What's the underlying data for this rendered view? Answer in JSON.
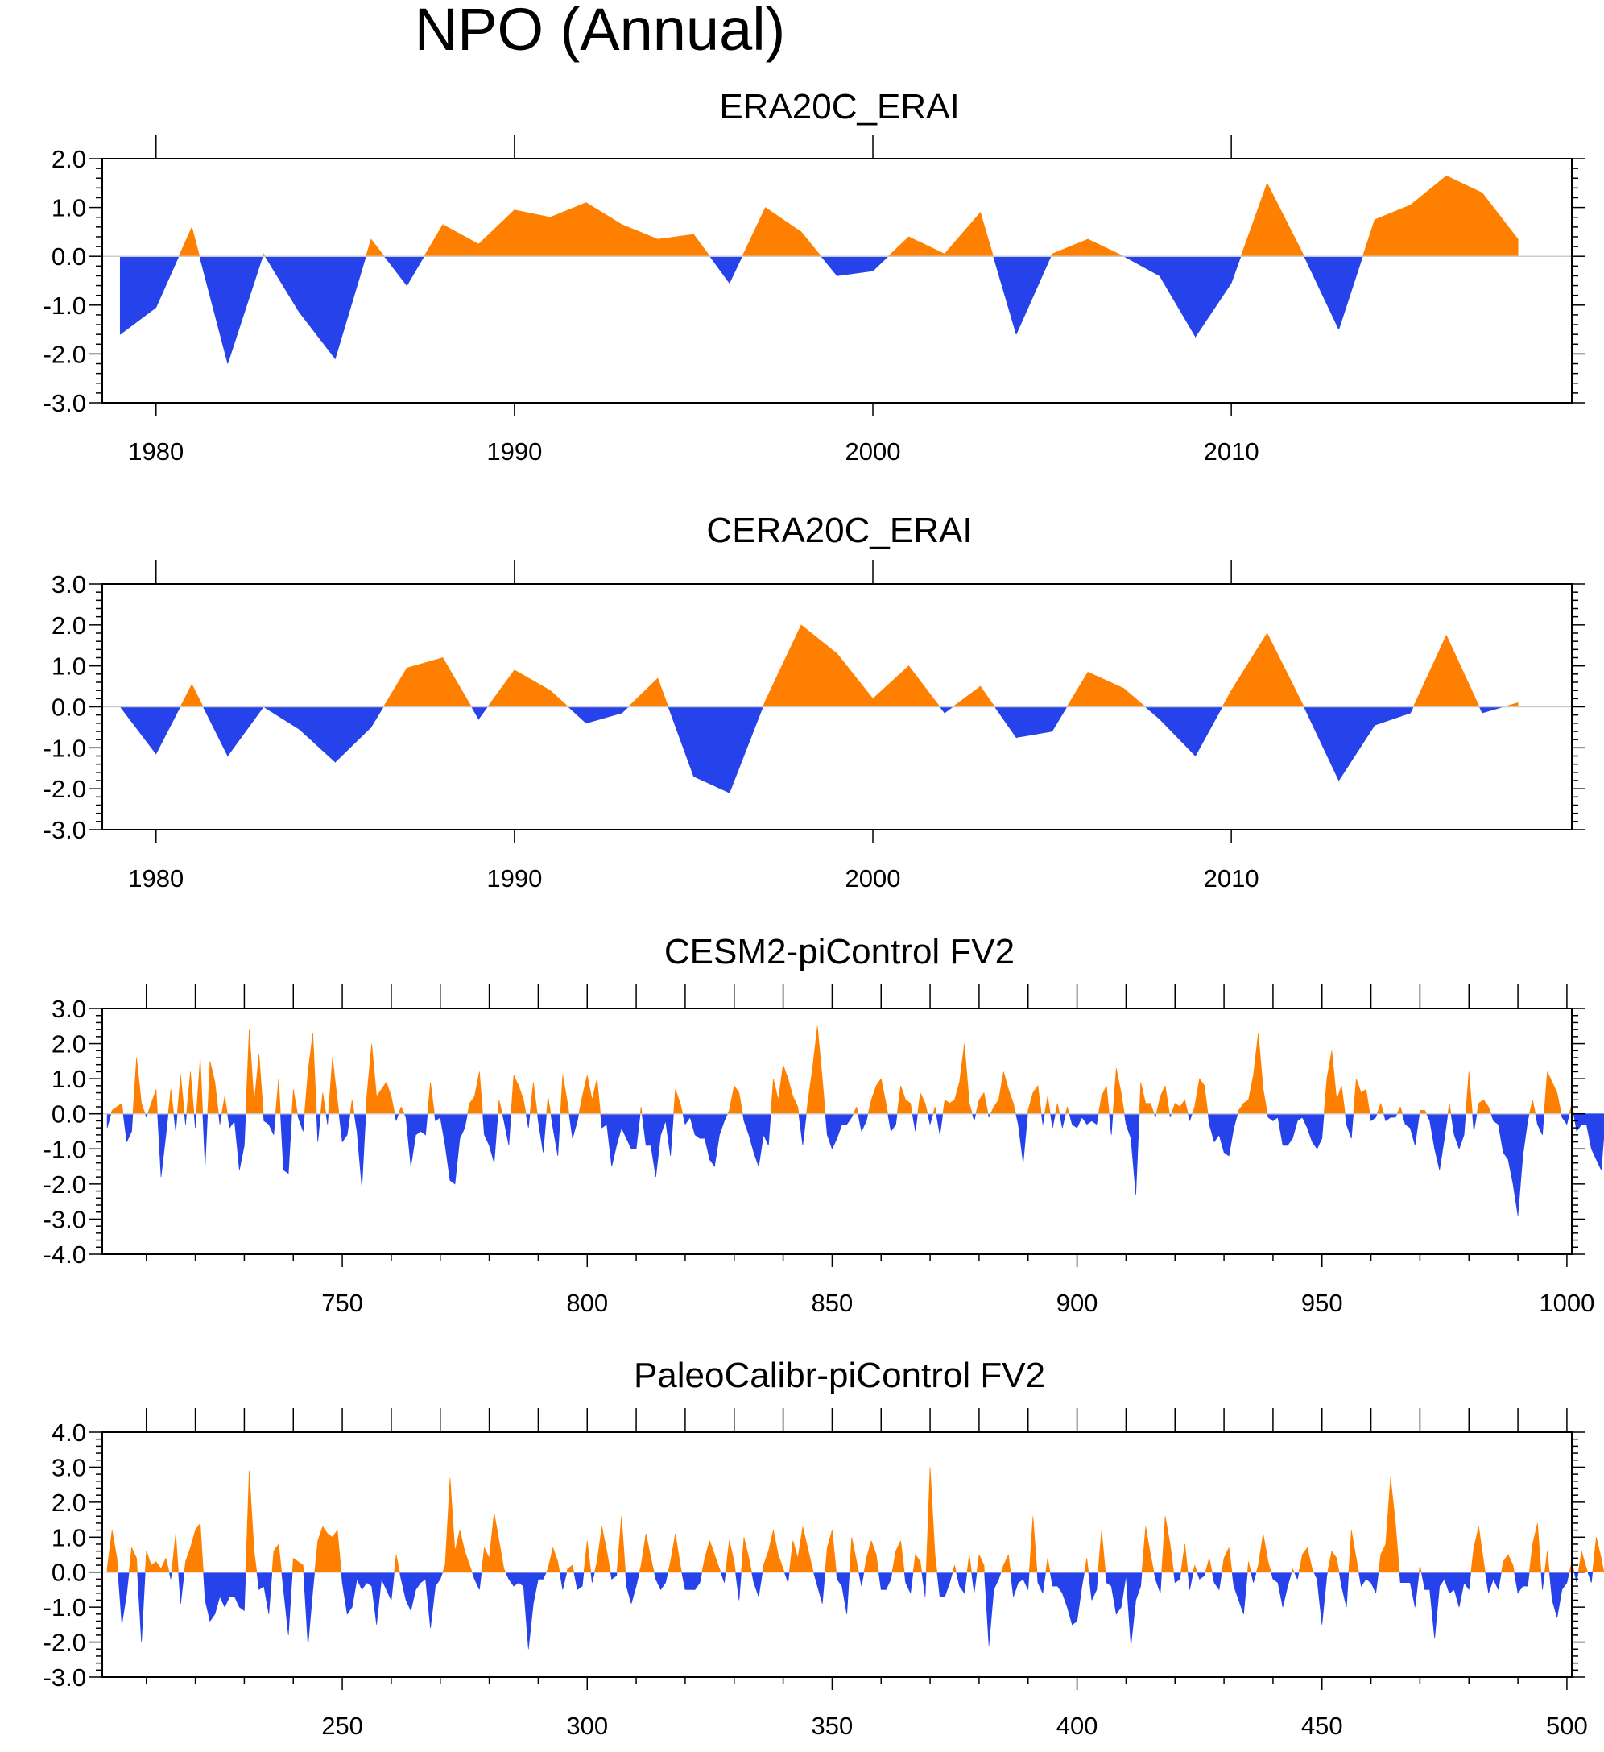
{
  "figure_title": "NPO (Annual)",
  "colors": {
    "positive": "#ff8000",
    "negative": "#2642ea",
    "axis": "#000000"
  },
  "chart_data": [
    {
      "type": "area",
      "title": "ERA20C_ERAI",
      "xlabel": "",
      "ylabel": "",
      "xlim": [
        1978.5,
        2019.5
      ],
      "ylim": [
        -3.0,
        2.0
      ],
      "yticks": [
        -3.0,
        -2.0,
        -1.0,
        0.0,
        1.0,
        2.0
      ],
      "ytick_labels": [
        "-3.0",
        "-2.0",
        "-1.0",
        "0.0",
        "1.0",
        "2.0"
      ],
      "xticks": [
        1980,
        1990,
        2000,
        2010
      ],
      "xtick_labels": [
        "1980",
        "1990",
        "2000",
        "2010"
      ],
      "x": [
        1979,
        1980,
        1981,
        1982,
        1983,
        1984,
        1985,
        1986,
        1987,
        1988,
        1989,
        1990,
        1991,
        1992,
        1993,
        1994,
        1995,
        1996,
        1997,
        1998,
        1999,
        2000,
        2001,
        2002,
        2003,
        2004,
        2005,
        2006,
        2007,
        2008,
        2009,
        2010,
        2011,
        2012,
        2013,
        2014,
        2015,
        2016,
        2017,
        2018
      ],
      "values": [
        -1.6,
        -1.05,
        0.6,
        -2.2,
        0.05,
        -1.15,
        -2.1,
        0.35,
        -0.6,
        0.65,
        0.25,
        0.95,
        0.8,
        1.1,
        0.65,
        0.35,
        0.45,
        -0.55,
        1.0,
        0.5,
        -0.4,
        -0.3,
        0.4,
        0.05,
        0.9,
        -1.6,
        0.05,
        0.35,
        0.0,
        -0.4,
        -1.65,
        -0.55,
        1.5,
        0.05,
        -1.5,
        0.75,
        1.05,
        1.65,
        1.3,
        0.35
      ]
    },
    {
      "type": "area",
      "title": "CERA20C_ERAI",
      "xlabel": "",
      "ylabel": "",
      "xlim": [
        1978.5,
        2019.5
      ],
      "ylim": [
        -3.0,
        3.0
      ],
      "yticks": [
        -3.0,
        -2.0,
        -1.0,
        0.0,
        1.0,
        2.0,
        3.0
      ],
      "ytick_labels": [
        "-3.0",
        "-2.0",
        "-1.0",
        "0.0",
        "1.0",
        "2.0",
        "3.0"
      ],
      "xticks": [
        1980,
        1990,
        2000,
        2010
      ],
      "xtick_labels": [
        "1980",
        "1990",
        "2000",
        "2010"
      ],
      "x": [
        1979,
        1980,
        1981,
        1982,
        1983,
        1984,
        1985,
        1986,
        1987,
        1988,
        1989,
        1990,
        1991,
        1992,
        1993,
        1994,
        1995,
        1996,
        1997,
        1998,
        1999,
        2000,
        2001,
        2002,
        2003,
        2004,
        2005,
        2006,
        2007,
        2008,
        2009,
        2010,
        2011,
        2012,
        2013,
        2014,
        2015,
        2016,
        2017,
        2018
      ],
      "values": [
        0.0,
        -1.15,
        0.55,
        -1.2,
        0.0,
        -0.55,
        -1.35,
        -0.5,
        0.95,
        1.2,
        -0.3,
        0.9,
        0.4,
        -0.4,
        -0.15,
        0.7,
        -1.7,
        -2.1,
        0.15,
        2.0,
        1.3,
        0.2,
        1.0,
        -0.15,
        0.5,
        -0.75,
        -0.6,
        0.85,
        0.45,
        -0.3,
        -1.2,
        0.4,
        1.8,
        0.05,
        -1.8,
        -0.45,
        -0.15,
        1.75,
        -0.15,
        0.1
      ]
    },
    {
      "type": "area",
      "title": "CESM2-piControl FV2",
      "xlabel": "",
      "ylabel": "",
      "xlim": [
        701,
        1001
      ],
      "ylim": [
        -4.0,
        3.0
      ],
      "yticks": [
        -4.0,
        -3.0,
        -2.0,
        -1.0,
        0.0,
        1.0,
        2.0,
        3.0
      ],
      "ytick_labels": [
        "-4.0",
        "-3.0",
        "-2.0",
        "-1.0",
        "0.0",
        "1.0",
        "2.0",
        "3.0"
      ],
      "xticks": [
        750,
        800,
        850,
        900,
        950,
        1000
      ],
      "xtick_labels": [
        "750",
        "800",
        "850",
        "900",
        "950",
        "1000"
      ],
      "x_start": 702,
      "values": [
        -0.4,
        0.1,
        0.2,
        0.3,
        -0.8,
        -0.5,
        1.6,
        0.3,
        -0.1,
        0.3,
        0.7,
        -1.8,
        -0.6,
        0.7,
        -0.5,
        1.1,
        -0.3,
        1.2,
        -0.4,
        1.6,
        -1.5,
        1.5,
        0.9,
        -0.3,
        0.5,
        -0.4,
        -0.2,
        -1.6,
        -0.9,
        2.4,
        0.3,
        1.7,
        -0.2,
        -0.3,
        -0.6,
        1.0,
        -1.6,
        -1.7,
        0.7,
        -0.1,
        -0.5,
        1.2,
        2.3,
        -0.8,
        0.6,
        -0.3,
        1.6,
        0.4,
        -0.8,
        -0.6,
        0.4,
        -0.5,
        -2.1,
        0.5,
        2.0,
        0.5,
        0.7,
        0.9,
        0.5,
        -0.2,
        0.2,
        -0.1,
        -1.5,
        -0.6,
        -0.5,
        -0.6,
        0.9,
        -0.2,
        -0.1,
        -0.9,
        -1.9,
        -2.0,
        -0.7,
        -0.4,
        0.3,
        0.5,
        1.2,
        -0.6,
        -0.9,
        -1.4,
        0.4,
        -0.2,
        -0.9,
        1.1,
        0.8,
        0.4,
        -0.4,
        0.9,
        -0.2,
        -1.1,
        0.5,
        -0.4,
        -1.2,
        1.1,
        0.3,
        -0.7,
        -0.2,
        0.5,
        1.1,
        0.4,
        1.0,
        -0.4,
        -0.3,
        -1.5,
        -0.9,
        -0.4,
        -0.7,
        -1.0,
        -1.0,
        0.2,
        -0.9,
        -0.9,
        -1.8,
        -0.6,
        -0.2,
        -1.2,
        0.7,
        0.3,
        -0.3,
        -0.1,
        -0.6,
        -0.7,
        -0.7,
        -1.3,
        -1.5,
        -0.6,
        -0.2,
        0.1,
        0.8,
        0.6,
        -0.2,
        -0.6,
        -1.1,
        -1.5,
        -0.6,
        -0.9,
        1.0,
        0.4,
        1.4,
        1.0,
        0.5,
        0.2,
        -0.9,
        0.3,
        1.3,
        2.5,
        1.0,
        -0.6,
        -1.0,
        -0.7,
        -0.3,
        -0.3,
        -0.1,
        0.2,
        -0.5,
        -0.2,
        0.4,
        0.8,
        1.0,
        0.3,
        -0.5,
        -0.3,
        0.8,
        0.4,
        0.3,
        -0.5,
        0.6,
        0.3,
        -0.3,
        0.2,
        -0.6,
        0.4,
        0.3,
        0.4,
        0.9,
        2.0,
        0.3,
        -0.2,
        0.4,
        0.6,
        -0.1,
        0.2,
        0.4,
        1.2,
        0.7,
        0.3,
        -0.3,
        -1.4,
        0.1,
        0.6,
        0.8,
        -0.3,
        0.5,
        -0.4,
        0.3,
        -0.4,
        0.2,
        -0.3,
        -0.4,
        -0.1,
        -0.3,
        -0.2,
        -0.3,
        0.5,
        0.8,
        -0.6,
        1.3,
        0.6,
        -0.3,
        -0.7,
        -2.3,
        0.9,
        0.3,
        0.3,
        -0.1,
        0.5,
        0.8,
        -0.1,
        0.3,
        0.2,
        0.4,
        -0.2,
        0.2,
        1.0,
        0.8,
        -0.3,
        -0.8,
        -0.6,
        -1.1,
        -1.2,
        -0.4,
        0.1,
        0.3,
        0.4,
        1.1,
        2.3,
        0.7,
        -0.1,
        -0.2,
        -0.1,
        -0.9,
        -0.9,
        -0.7,
        -0.2,
        -0.1,
        -0.4,
        -0.8,
        -1.0,
        -0.7,
        1.0,
        1.8,
        0.4,
        0.8,
        -0.3,
        -0.7,
        1.0,
        0.6,
        0.7,
        -0.2,
        -0.1,
        0.3,
        -0.2,
        -0.1,
        -0.1,
        0.2,
        -0.3,
        -0.4,
        -0.9,
        0.1,
        0.1,
        -0.2,
        -1.0,
        -1.6,
        -0.7,
        0.3,
        -0.6,
        -1.0,
        -0.6,
        1.2,
        -0.5,
        0.3,
        0.4,
        0.2,
        -0.2,
        -0.3,
        -1.1,
        -1.3,
        -2.0,
        -2.9,
        -1.2,
        -0.2,
        0.4,
        -0.3,
        -0.6,
        1.2,
        0.9,
        0.6,
        -0.1,
        -0.3,
        0.3,
        -0.5,
        -0.3,
        -0.3,
        -1.0,
        -1.3,
        -1.6,
        0.1,
        0.8,
        0.7,
        -0.2,
        1.1,
        0.9,
        0.7,
        -0.2,
        -0.2,
        -0.4,
        -0.1,
        -1.1,
        -2.3,
        -2.0,
        -0.5,
        0.3,
        -0.2,
        0.1,
        1.0,
        -0.1,
        0.1,
        0.2,
        0.4,
        0.9,
        0.2,
        -0.3,
        -0.8,
        -0.9,
        0.7,
        -0.2,
        0.1,
        0.4,
        0.3,
        -0.3,
        -0.3,
        -0.5,
        -0.2,
        0.6,
        0.9,
        0.2,
        -0.5,
        -0.6,
        0.3,
        0.8,
        -0.3,
        0.3,
        -0.2,
        -0.3,
        0.4,
        0.6,
        0.9,
        0.2,
        -0.5,
        0.3,
        1.3,
        0.7,
        0.3,
        0.2,
        -0.3,
        0.5,
        1.0,
        -0.5,
        0.6,
        0.2,
        1.0,
        0.3,
        -0.2,
        -0.4,
        -0.5,
        -0.7,
        -0.3,
        0.4,
        1.2,
        0.5,
        2.3,
        0.8,
        0.1,
        -0.5,
        0.4,
        1.1,
        0.4,
        -0.2,
        0.3,
        -0.6,
        -0.1,
        0.4,
        -0.8,
        -1.2,
        -0.6,
        0.3,
        0.1,
        -0.3,
        -0.3,
        -0.3,
        -0.5,
        -0.1,
        -1.0,
        -1.4,
        -1.3,
        -0.7,
        -0.2,
        0.4,
        0.9,
        0.5,
        -0.2,
        0.1,
        0.9,
        0.3,
        -0.4,
        -0.2,
        -0.3,
        0.0,
        -0.1,
        0.3,
        0.5,
        0.7,
        0.5,
        -0.2,
        0.1,
        0.8,
        0.6,
        0.2,
        -0.2,
        0.4,
        0.3,
        0.2,
        -0.3,
        -0.7,
        0.4,
        1.2,
        1.6,
        0.4,
        -0.2,
        0.2,
        1.0,
        -0.2,
        0.1,
        -0.2,
        -0.4,
        -0.7,
        -0.5,
        0.4,
        0.1,
        -0.1,
        -0.6,
        0.2,
        -0.2,
        -0.2,
        -0.3,
        -0.5,
        -0.9,
        -0.8,
        0.6,
        1.3,
        0.9,
        0.1,
        -0.7,
        -0.3,
        -1.0,
        -2.0,
        -1.1,
        0.2,
        0.4,
        -0.4,
        -1.1,
        -0.3,
        -0.4,
        0.6,
        0.3,
        0.1,
        0.6,
        0.5,
        0.4,
        0.1,
        -0.3,
        1.0,
        0.6,
        -0.8,
        0.3,
        0.9,
        1.1,
        1.1,
        -0.2,
        -0.4,
        -0.3,
        -0.2,
        0.1,
        2.0,
        -0.1,
        -0.6,
        -1.3,
        -0.4,
        -0.3,
        -0.2,
        -0.9,
        -0.6,
        0.6,
        -0.5,
        0.4,
        -0.7,
        -0.3,
        0.1,
        1.6,
        2.1,
        1.2,
        0.9,
        0.6
      ]
    },
    {
      "type": "area",
      "title": "PaleoCalibr-piControl FV2",
      "xlabel": "",
      "ylabel": "",
      "xlim": [
        201,
        501
      ],
      "ylim": [
        -3.0,
        4.0
      ],
      "yticks": [
        -3.0,
        -2.0,
        -1.0,
        0.0,
        1.0,
        2.0,
        3.0,
        4.0
      ],
      "ytick_labels": [
        "-3.0",
        "-2.0",
        "-1.0",
        "0.0",
        "1.0",
        "2.0",
        "3.0",
        "4.0"
      ],
      "xticks": [
        250,
        300,
        350,
        400,
        450,
        500
      ],
      "xtick_labels": [
        "250",
        "300",
        "350",
        "400",
        "450",
        "500"
      ],
      "x_start": 202,
      "values": [
        0.1,
        1.2,
        0.4,
        -1.5,
        -0.6,
        0.7,
        0.4,
        -2.0,
        0.6,
        0.2,
        0.3,
        0.1,
        0.4,
        -0.2,
        1.1,
        -0.9,
        0.3,
        0.7,
        1.2,
        1.4,
        -0.8,
        -1.4,
        -1.2,
        -0.7,
        -1.0,
        -0.7,
        -0.7,
        -1.0,
        -1.1,
        2.9,
        0.6,
        -0.5,
        -0.4,
        -1.2,
        0.6,
        0.8,
        -0.5,
        -1.8,
        0.4,
        0.3,
        0.2,
        -2.1,
        -0.5,
        0.9,
        1.3,
        1.1,
        1.0,
        1.2,
        -0.3,
        -1.2,
        -1.0,
        -0.2,
        -0.5,
        -0.3,
        -0.4,
        -1.5,
        -0.2,
        -0.5,
        -0.8,
        0.5,
        -0.2,
        -0.8,
        -1.1,
        -0.5,
        -0.3,
        -0.2,
        -1.6,
        -0.4,
        -0.2,
        0.2,
        2.7,
        0.6,
        1.2,
        0.6,
        0.2,
        -0.2,
        -0.5,
        0.7,
        0.4,
        1.7,
        0.9,
        0.1,
        -0.2,
        -0.4,
        -0.3,
        -0.4,
        -2.2,
        -0.9,
        -0.2,
        -0.2,
        0.1,
        0.7,
        0.3,
        -0.5,
        0.1,
        0.2,
        -0.5,
        -0.4,
        0.9,
        -0.3,
        0.3,
        1.3,
        0.6,
        -0.2,
        -0.1,
        1.6,
        -0.4,
        -0.9,
        -0.4,
        0.2,
        1.1,
        0.4,
        -0.2,
        -0.5,
        -0.3,
        0.3,
        1.1,
        0.2,
        -0.5,
        -0.5,
        -0.5,
        -0.3,
        0.4,
        0.9,
        0.5,
        0.1,
        -0.3,
        0.9,
        0.3,
        -0.8,
        1.0,
        0.4,
        -0.3,
        -0.7,
        0.2,
        0.6,
        1.2,
        0.5,
        0.1,
        -0.3,
        0.9,
        0.4,
        1.3,
        0.7,
        0.1,
        -0.4,
        -0.9,
        0.7,
        1.2,
        -0.2,
        -0.4,
        -1.2,
        1.0,
        0.3,
        -0.4,
        0.4,
        0.9,
        0.5,
        -0.5,
        -0.5,
        -0.2,
        0.6,
        0.9,
        -0.3,
        -0.6,
        0.5,
        0.3,
        -0.7,
        3.0,
        0.5,
        -0.7,
        -0.7,
        -0.3,
        0.2,
        -0.4,
        -0.6,
        0.5,
        -0.6,
        0.5,
        0.2,
        -2.1,
        -0.5,
        -0.2,
        0.2,
        0.5,
        -0.7,
        -0.3,
        -0.2,
        -0.5,
        1.6,
        -0.3,
        -0.6,
        0.4,
        -0.4,
        -0.4,
        -0.6,
        -1.0,
        -1.5,
        -1.4,
        -0.4,
        0.4,
        -0.8,
        -0.5,
        1.2,
        -0.3,
        -0.4,
        -1.2,
        -1.0,
        -0.1,
        -2.1,
        -0.8,
        -0.4,
        1.3,
        0.5,
        -0.2,
        -0.6,
        1.6,
        0.8,
        -0.3,
        -0.2,
        0.8,
        -0.5,
        0.2,
        -0.2,
        -0.1,
        0.4,
        -0.3,
        -0.5,
        0.4,
        0.7,
        -0.4,
        -0.8,
        -1.2,
        0.3,
        -0.3,
        0.2,
        1.1,
        0.3,
        -0.2,
        -0.3,
        -1.0,
        -0.4,
        0.1,
        -0.2,
        0.5,
        0.7,
        0.1,
        -0.2,
        -1.5,
        -0.1,
        0.6,
        0.4,
        -0.4,
        -1.0,
        1.2,
        0.4,
        -0.4,
        -0.2,
        -0.3,
        -0.6,
        0.5,
        0.8,
        2.7,
        1.4,
        -0.3,
        -0.3,
        -0.3,
        -1.0,
        0.2,
        -0.5,
        -0.5,
        -1.9,
        -0.4,
        -0.2,
        -0.6,
        -0.5,
        -1.0,
        -0.3,
        -0.5,
        0.7,
        1.3,
        0.3,
        -0.6,
        -0.2,
        -0.5,
        0.3,
        0.5,
        0.2,
        -0.6,
        -0.4,
        -0.4,
        0.8,
        1.4,
        -0.5,
        0.6,
        -0.8,
        -1.3,
        -0.5,
        -0.3,
        0.3,
        -0.3,
        0.6,
        0.1,
        -0.3,
        1.0,
        0.4,
        -0.3,
        -0.7,
        0.5,
        -0.1,
        -0.4,
        -0.8,
        0.6,
        -0.2,
        -0.3,
        0.4,
        -0.2,
        -0.1,
        -0.1,
        0.6,
        1.5,
        0.8,
        -0.3,
        -0.5,
        -0.3,
        0.9,
        0.4,
        -0.5,
        -0.7,
        -0.8,
        1.7,
        -0.3,
        -0.6,
        0.3,
        1.0,
        0.5,
        -0.8,
        -0.4,
        -0.2,
        -0.6,
        1.1,
        0.4,
        -0.5,
        0.6,
        1.3,
        -0.3,
        -1.2,
        -1.2,
        -0.5,
        -0.9,
        -0.2,
        0.7,
        -0.8,
        -1.0,
        -1.4,
        -2.2,
        -0.8,
        -0.4,
        -0.9,
        -1.3,
        0.5,
        -0.7,
        -0.6,
        0.9,
        0.4,
        -0.5,
        -1.5,
        0.6,
        0.7,
        -0.3,
        -0.3,
        -0.5,
        -0.1,
        1.0,
        1.5,
        0.6,
        -0.4,
        -0.8,
        -1.2,
        -0.7,
        0.2,
        0.5,
        -0.7,
        -1.4,
        1.5,
        0.6,
        -0.2,
        -1.0,
        0.9,
        0.4,
        0.3,
        -0.4,
        -0.4,
        -0.6,
        -0.3,
        1.2,
        0.8,
        -0.5,
        0.3,
        2.0,
        1.1,
        0.7,
        -0.4,
        -0.8,
        -1.2,
        -1.5,
        0.4,
        0.6,
        -0.5,
        -0.6,
        1.3,
        0.5,
        -0.2,
        -0.8,
        -0.6,
        -1.0,
        0.2,
        -0.4,
        -0.6,
        0.4,
        0.5,
        1.4,
        0.2,
        -0.4,
        -0.5,
        -0.2,
        1.0,
        1.6,
        0.4,
        -0.2,
        -0.7,
        -1.5,
        -0.5,
        0.8,
        0.3,
        0.2,
        -0.2,
        -0.6,
        -0.4,
        0.3,
        0.4,
        1.6,
        1.9,
        2.3,
        -0.4,
        -1.2,
        -0.7,
        0.4,
        0.7,
        -0.2,
        -0.8,
        1.2,
        -0.6,
        -1.0,
        -0.3,
        -0.7,
        -1.1,
        0.7,
        0.4,
        -1.3,
        -0.5,
        0.2,
        1.8,
        0.9,
        0.4,
        -0.4,
        -0.6,
        0.6,
        1.0,
        -0.2,
        -0.6,
        0.3,
        0.5,
        -0.3,
        -0.2,
        0.4,
        -0.5,
        0.2,
        1.0,
        0.1
      ]
    }
  ]
}
